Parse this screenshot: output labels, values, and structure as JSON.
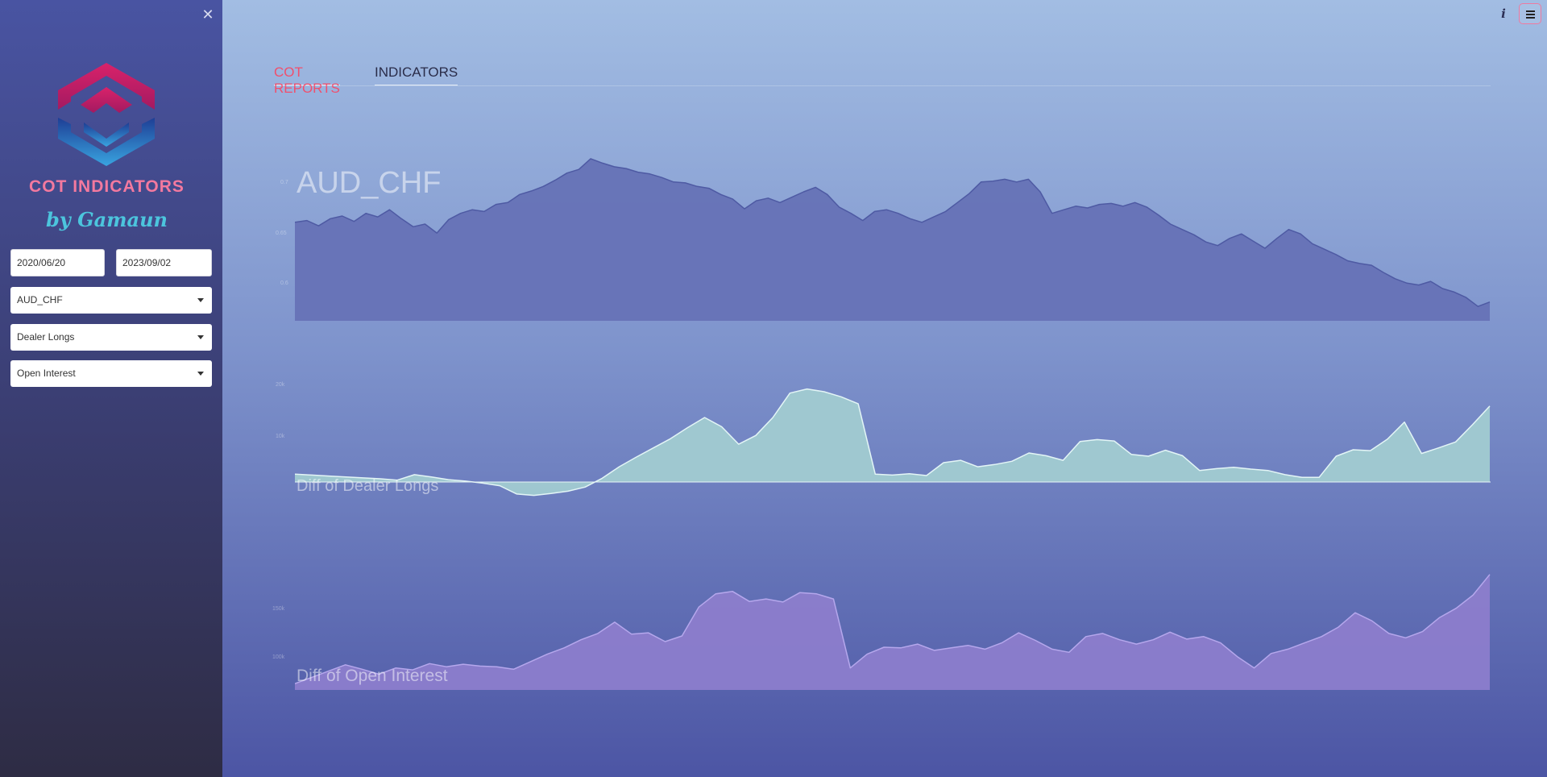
{
  "sidebar": {
    "close_icon": "close-icon",
    "logo_icon": "hexagon-logo",
    "brand_title": "COT INDICATORS",
    "brand_subtitle": "by Gamaun",
    "start_date": "2020/06/20",
    "end_date": "2023/09/02",
    "symbol_select": "AUD_CHF",
    "metric_select": "Dealer Longs",
    "metric2_select": "Open Interest"
  },
  "topbar": {
    "info_icon": "info-icon",
    "menu_icon": "hamburger-menu-icon"
  },
  "tabs": [
    {
      "label": "COT REPORTS",
      "active": true
    },
    {
      "label": "INDICATORS",
      "active": false
    }
  ],
  "colors": {
    "price_fill": "#6672b6",
    "price_line": "#4e5aa3",
    "dealer_fill": "#a1cbd1",
    "dealer_line": "#e3f5f6",
    "oi_fill": "#8c7dcc",
    "oi_line": "#b5a7ec",
    "accent": "#f04f6d"
  },
  "chart_data": [
    {
      "type": "area",
      "title": "AUD_CHF",
      "yticks": [
        "0.7",
        "0.65",
        "0.6"
      ],
      "ylim": [
        0.54,
        0.72
      ],
      "values": [
        0.65,
        0.652,
        0.646,
        0.654,
        0.657,
        0.651,
        0.66,
        0.656,
        0.664,
        0.654,
        0.645,
        0.648,
        0.638,
        0.653,
        0.66,
        0.664,
        0.662,
        0.67,
        0.672,
        0.681,
        0.685,
        0.69,
        0.697,
        0.705,
        0.709,
        0.721,
        0.716,
        0.712,
        0.71,
        0.706,
        0.704,
        0.7,
        0.695,
        0.694,
        0.69,
        0.688,
        0.681,
        0.676,
        0.665,
        0.674,
        0.677,
        0.672,
        0.678,
        0.684,
        0.689,
        0.681,
        0.667,
        0.66,
        0.652,
        0.662,
        0.664,
        0.66,
        0.654,
        0.65,
        0.656,
        0.662,
        0.672,
        0.682,
        0.695,
        0.696,
        0.698,
        0.695,
        0.698,
        0.684,
        0.66,
        0.664,
        0.668,
        0.666,
        0.67,
        0.671,
        0.668,
        0.672,
        0.667,
        0.658,
        0.648,
        0.642,
        0.636,
        0.628,
        0.624,
        0.632,
        0.637,
        0.629,
        0.621,
        0.632,
        0.642,
        0.637,
        0.626,
        0.62,
        0.614,
        0.607,
        0.604,
        0.602,
        0.594,
        0.587,
        0.582,
        0.58,
        0.584,
        0.576,
        0.572,
        0.566,
        0.556,
        0.561
      ]
    },
    {
      "type": "area",
      "title": "Diff of Dealer Longs",
      "yticks": [
        "20k",
        "10k"
      ],
      "ylim": [
        -3500,
        21000
      ],
      "values": [
        1700,
        1500,
        1300,
        1100,
        900,
        700,
        400,
        1600,
        1100,
        500,
        200,
        -250,
        -800,
        -2600,
        -2900,
        -2500,
        -2000,
        -1100,
        800,
        3300,
        5400,
        7400,
        9400,
        11800,
        14000,
        12000,
        8200,
        10100,
        14000,
        19300,
        20200,
        19600,
        18500,
        17000,
        1700,
        1500,
        1800,
        1400,
        4200,
        4700,
        3300,
        3800,
        4500,
        6300,
        5700,
        4700,
        8800,
        9200,
        8900,
        6000,
        5600,
        6900,
        5700,
        2500,
        2900,
        3200,
        2800,
        2500,
        1600,
        1000,
        1000,
        5600,
        7000,
        6800,
        9300,
        13000,
        6200,
        7400,
        8700,
        12500,
        16500
      ]
    },
    {
      "type": "area",
      "title": "Diff of Open Interest",
      "yticks": [
        "150k",
        "100k"
      ],
      "ylim": [
        -5000,
        185000
      ],
      "values": [
        5000,
        15000,
        25000,
        35000,
        28000,
        20000,
        30000,
        27000,
        37000,
        32000,
        36000,
        33000,
        32000,
        28000,
        40000,
        52000,
        62000,
        75000,
        85000,
        103000,
        84000,
        86000,
        72000,
        81000,
        127000,
        148000,
        152000,
        136000,
        140000,
        135000,
        150000,
        148000,
        140000,
        30000,
        52000,
        63000,
        62000,
        68000,
        58000,
        62000,
        66000,
        60000,
        70000,
        86000,
        74000,
        60000,
        55000,
        80000,
        85000,
        75000,
        68000,
        75000,
        87000,
        76000,
        80000,
        70000,
        48000,
        30000,
        53000,
        60000,
        70000,
        80000,
        95000,
        118000,
        105000,
        85000,
        78000,
        88000,
        110000,
        125000,
        146000,
        179000
      ]
    }
  ]
}
